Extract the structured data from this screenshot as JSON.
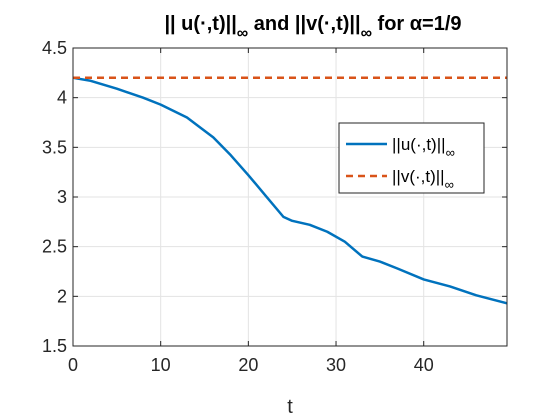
{
  "chart_data": {
    "type": "line",
    "title": {
      "prefix": "|| u(·,t)||",
      "sub1": "∞",
      "middle": " and ||v(·,t)||",
      "sub2": "∞",
      "suffix": " for α=1/9"
    },
    "xlabel": "t",
    "ylabel": "",
    "xlim": [
      0,
      49.5
    ],
    "ylim": [
      1.5,
      4.5
    ],
    "xticks": [
      "0",
      "10",
      "20",
      "30",
      "40"
    ],
    "xtick_values": [
      0,
      10,
      20,
      30,
      40
    ],
    "yticks": [
      "1.5",
      "2",
      "2.5",
      "3",
      "3.5",
      "4",
      "4.5"
    ],
    "ytick_values": [
      1.5,
      2,
      2.5,
      3,
      3.5,
      4,
      4.5
    ],
    "grid": true,
    "legend_position": "right",
    "series": [
      {
        "name": "||u(·,t)||",
        "name_sub": "∞",
        "color": "#0072BD",
        "style": "solid",
        "x": [
          0,
          2,
          5,
          8,
          10,
          13,
          16,
          18,
          20,
          22,
          24,
          25,
          27,
          29,
          31,
          33,
          35,
          37,
          40,
          43,
          46,
          49.5
        ],
        "y": [
          4.2,
          4.17,
          4.09,
          4.0,
          3.93,
          3.8,
          3.6,
          3.42,
          3.22,
          3.01,
          2.8,
          2.76,
          2.72,
          2.65,
          2.55,
          2.4,
          2.35,
          2.28,
          2.17,
          2.1,
          2.01,
          1.93
        ]
      },
      {
        "name": "||v(·,t)||",
        "name_sub": "∞",
        "color": "#D95319",
        "style": "dashed",
        "x": [
          0,
          49.5
        ],
        "y": [
          4.2,
          4.2
        ]
      }
    ]
  }
}
